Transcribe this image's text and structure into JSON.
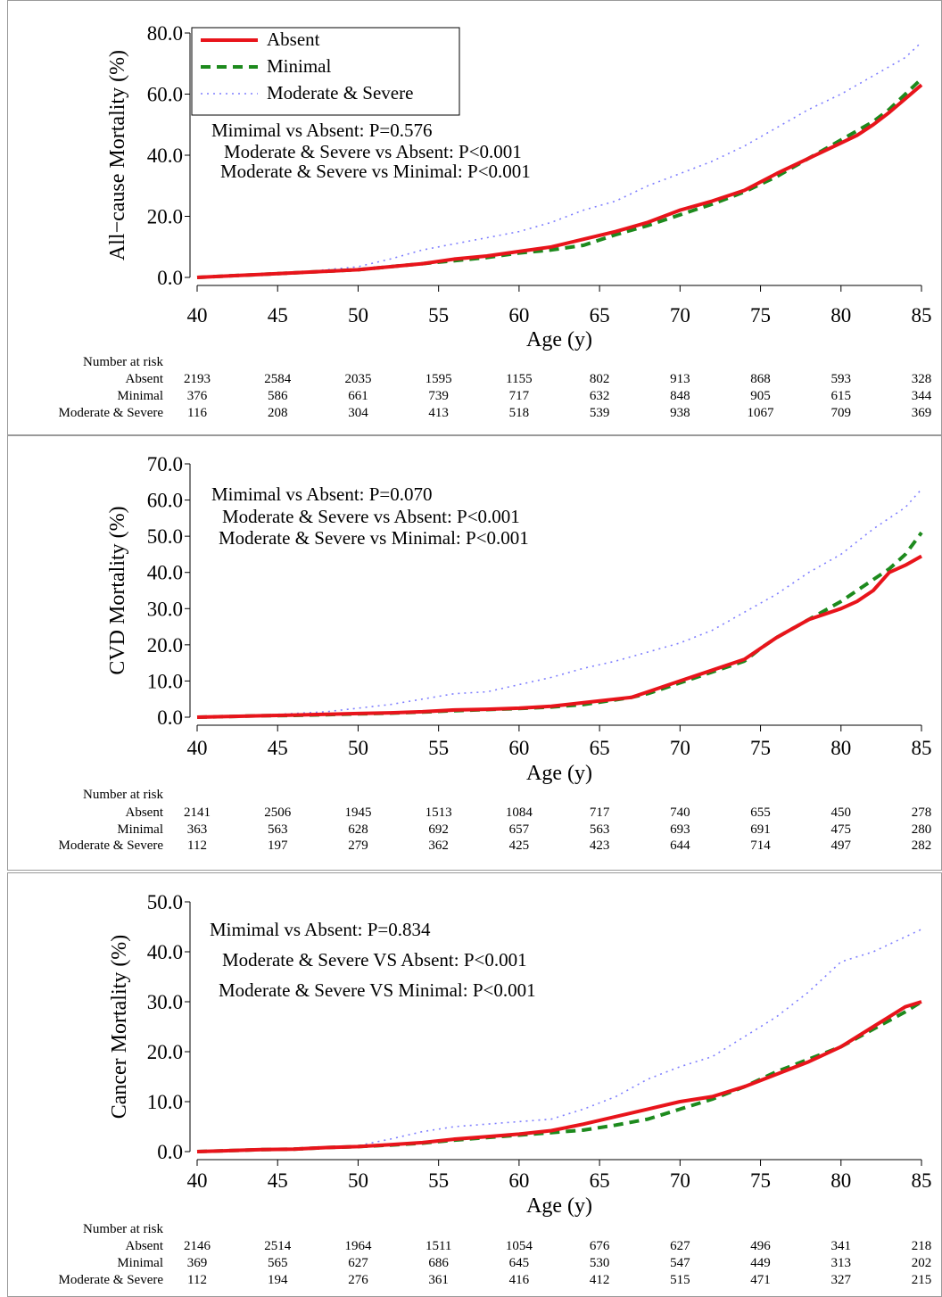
{
  "chart_data": [
    {
      "type": "line",
      "xlabel": "Age (y)",
      "ylabel": "All−cause Mortality (%)",
      "xlim": [
        40,
        85
      ],
      "ylim": [
        0,
        80
      ],
      "x_ticks": [
        "40",
        "45",
        "50",
        "55",
        "60",
        "65",
        "70",
        "75",
        "80",
        "85"
      ],
      "y_ticks": [
        "0.0",
        "20.0",
        "40.0",
        "60.0",
        "80.0"
      ],
      "legend": {
        "placement": "top-left",
        "entries": [
          "Absent",
          "Minimal",
          "Moderate & Severe"
        ]
      },
      "annotations": [
        "Mimimal vs Absent: P=0.576",
        "Moderate & Severe vs Absent:  P<0.001",
        "Moderate & Severe vs Minimal:  P<0.001"
      ],
      "series": [
        {
          "name": "Absent",
          "color": "#e8141b",
          "style": "solid",
          "x": [
            40,
            42,
            44,
            46,
            48,
            50,
            52,
            54,
            56,
            58,
            60,
            62,
            64,
            66,
            68,
            70,
            72,
            74,
            76,
            78,
            80,
            81,
            82,
            83,
            84,
            85
          ],
          "y": [
            0,
            0.5,
            1,
            1.5,
            2,
            2.5,
            3.5,
            4.5,
            6,
            7,
            8.5,
            10,
            12.5,
            15,
            18,
            22,
            25,
            28.5,
            34,
            39,
            44,
            46.5,
            50,
            54,
            58.5,
            63
          ]
        },
        {
          "name": "Minimal",
          "color": "#1d8a1d",
          "style": "dashed",
          "x": [
            40,
            42,
            44,
            46,
            48,
            50,
            52,
            54,
            56,
            58,
            60,
            62,
            64,
            66,
            68,
            70,
            72,
            74,
            76,
            78,
            80,
            81,
            82,
            83,
            84,
            85
          ],
          "y": [
            0,
            0.5,
            1,
            1.5,
            2,
            2.5,
            3.5,
            4.5,
            5.5,
            6.5,
            8,
            9,
            10.5,
            14,
            17,
            20.5,
            24,
            28,
            33,
            39,
            45,
            48,
            51,
            55,
            60,
            65
          ]
        },
        {
          "name": "Moderate & Severe",
          "color": "#7f7fff",
          "style": "dotted",
          "x": [
            40,
            42,
            44,
            46,
            48,
            50,
            52,
            54,
            56,
            58,
            60,
            62,
            64,
            66,
            68,
            70,
            72,
            74,
            76,
            78,
            80,
            82,
            84,
            85
          ],
          "y": [
            0,
            0.5,
            1,
            1.5,
            2.5,
            3.5,
            6,
            9,
            11,
            13,
            15,
            18,
            22,
            25,
            30,
            34,
            38,
            43,
            49,
            55,
            60,
            66,
            72,
            77
          ]
        }
      ],
      "number_at_risk": {
        "title": "Number at risk",
        "rows": [
          {
            "label": "Absent",
            "values": [
              "2193",
              "2584",
              "2035",
              "1595",
              "1155",
              "802",
              "913",
              "868",
              "593",
              "328"
            ]
          },
          {
            "label": "Minimal",
            "values": [
              "376",
              "586",
              "661",
              "739",
              "717",
              "632",
              "848",
              "905",
              "615",
              "344"
            ]
          },
          {
            "label": "Moderate & Severe",
            "values": [
              "116",
              "208",
              "304",
              "413",
              "518",
              "539",
              "938",
              "1067",
              "709",
              "369"
            ]
          }
        ]
      }
    },
    {
      "type": "line",
      "xlabel": "Age (y)",
      "ylabel": "CVD Mortality (%)",
      "xlim": [
        40,
        85
      ],
      "ylim": [
        0,
        70
      ],
      "x_ticks": [
        "40",
        "45",
        "50",
        "55",
        "60",
        "65",
        "70",
        "75",
        "80",
        "85"
      ],
      "y_ticks": [
        "0.0",
        "10.0",
        "20.0",
        "30.0",
        "40.0",
        "50.0",
        "60.0",
        "70.0"
      ],
      "annotations": [
        "Mimimal vs Absent: P=0.070",
        "Moderate & Severe vs Absent:  P<0.001",
        "Moderate & Severe vs Minimal:  P<0.001"
      ],
      "series": [
        {
          "name": "Absent",
          "color": "#e8141b",
          "style": "solid",
          "x": [
            40,
            42,
            44,
            46,
            48,
            50,
            52,
            54,
            56,
            58,
            60,
            62,
            64,
            66,
            67,
            68,
            70,
            72,
            74,
            75,
            76,
            78,
            80,
            81,
            82,
            83,
            84,
            85
          ],
          "y": [
            0,
            0.2,
            0.4,
            0.6,
            0.8,
            1,
            1.2,
            1.5,
            2,
            2.2,
            2.5,
            3,
            4,
            5,
            5.5,
            7,
            10,
            13,
            16,
            19,
            22,
            27,
            30,
            32,
            35,
            40,
            42,
            44.5
          ]
        },
        {
          "name": "Minimal",
          "color": "#1d8a1d",
          "style": "dashed",
          "x": [
            40,
            42,
            44,
            46,
            48,
            50,
            52,
            54,
            56,
            58,
            60,
            62,
            64,
            66,
            67,
            68,
            70,
            72,
            74,
            75,
            76,
            78,
            80,
            81,
            82,
            83,
            84,
            85
          ],
          "y": [
            0,
            0.2,
            0.4,
            0.5,
            0.7,
            0.9,
            1.1,
            1.4,
            1.8,
            2.1,
            2.4,
            2.8,
            3.5,
            4.8,
            5.5,
            6.5,
            9.5,
            12.5,
            15.5,
            19,
            22,
            27,
            32,
            35,
            38,
            41,
            45,
            51
          ]
        },
        {
          "name": "Moderate & Severe",
          "color": "#7f7fff",
          "style": "dotted",
          "x": [
            40,
            42,
            44,
            46,
            48,
            50,
            52,
            54,
            56,
            58,
            60,
            62,
            64,
            66,
            68,
            70,
            72,
            74,
            76,
            78,
            80,
            82,
            84,
            85
          ],
          "y": [
            0,
            0.3,
            0.6,
            1,
            1.5,
            2.5,
            3.5,
            5,
            6.5,
            7,
            9,
            11,
            13.5,
            15.5,
            18,
            20.5,
            24,
            29,
            34,
            40,
            45,
            52,
            58,
            63
          ]
        }
      ],
      "number_at_risk": {
        "title": "Number at risk",
        "rows": [
          {
            "label": "Absent",
            "values": [
              "2141",
              "2506",
              "1945",
              "1513",
              "1084",
              "717",
              "740",
              "655",
              "450",
              "278"
            ]
          },
          {
            "label": "Minimal",
            "values": [
              "363",
              "563",
              "628",
              "692",
              "657",
              "563",
              "693",
              "691",
              "475",
              "280"
            ]
          },
          {
            "label": "Moderate & Severe",
            "values": [
              "112",
              "197",
              "279",
              "362",
              "425",
              "423",
              "644",
              "714",
              "497",
              "282"
            ]
          }
        ]
      }
    },
    {
      "type": "line",
      "xlabel": "Age (y)",
      "ylabel": "Cancer Mortality (%)",
      "xlim": [
        40,
        85
      ],
      "ylim": [
        0,
        50
      ],
      "x_ticks": [
        "40",
        "45",
        "50",
        "55",
        "60",
        "65",
        "70",
        "75",
        "80",
        "85"
      ],
      "y_ticks": [
        "0.0",
        "10.0",
        "20.0",
        "30.0",
        "40.0",
        "50.0"
      ],
      "annotations": [
        "Mimimal vs Absent: P=0.834",
        "Moderate & Severe VS Absent:  P<0.001",
        "Moderate & Severe VS Minimal:  P<0.001"
      ],
      "series": [
        {
          "name": "Absent",
          "color": "#e8141b",
          "style": "solid",
          "x": [
            40,
            42,
            44,
            46,
            48,
            50,
            52,
            54,
            56,
            58,
            60,
            62,
            64,
            66,
            68,
            70,
            72,
            74,
            76,
            78,
            80,
            82,
            84,
            85
          ],
          "y": [
            0,
            0.2,
            0.4,
            0.5,
            0.8,
            1,
            1.4,
            1.8,
            2.5,
            3,
            3.5,
            4.2,
            5.5,
            7,
            8.5,
            10,
            11,
            13,
            15.5,
            18,
            21,
            25,
            29,
            30
          ]
        },
        {
          "name": "Minimal",
          "color": "#1d8a1d",
          "style": "dashed",
          "x": [
            40,
            42,
            44,
            46,
            48,
            50,
            52,
            54,
            56,
            58,
            60,
            62,
            64,
            66,
            68,
            70,
            72,
            74,
            76,
            78,
            80,
            82,
            84,
            85
          ],
          "y": [
            0,
            0.2,
            0.4,
            0.5,
            0.8,
            1,
            1.3,
            1.7,
            2.3,
            2.8,
            3.3,
            3.8,
            4.3,
            5.3,
            6.5,
            8.5,
            10.5,
            13,
            16,
            18.5,
            21,
            24.5,
            28,
            30
          ]
        },
        {
          "name": "Moderate & Severe",
          "color": "#7f7fff",
          "style": "dotted",
          "x": [
            40,
            42,
            44,
            46,
            48,
            50,
            52,
            54,
            56,
            58,
            60,
            62,
            64,
            66,
            68,
            70,
            72,
            74,
            76,
            78,
            80,
            82,
            84,
            85
          ],
          "y": [
            0,
            0.2,
            0.4,
            0.6,
            0.8,
            1.2,
            2.5,
            4,
            5,
            5.5,
            6,
            6.5,
            8.5,
            11,
            14.5,
            17,
            19,
            23,
            27,
            32,
            38,
            40,
            43,
            44.5
          ]
        }
      ],
      "number_at_risk": {
        "title": "Number at risk",
        "rows": [
          {
            "label": "Absent",
            "values": [
              "2146",
              "2514",
              "1964",
              "1511",
              "1054",
              "676",
              "627",
              "496",
              "341",
              "218"
            ]
          },
          {
            "label": "Minimal",
            "values": [
              "369",
              "565",
              "627",
              "686",
              "645",
              "530",
              "547",
              "449",
              "313",
              "202"
            ]
          },
          {
            "label": "Moderate & Severe",
            "values": [
              "112",
              "194",
              "276",
              "361",
              "416",
              "412",
              "515",
              "471",
              "327",
              "215"
            ]
          }
        ]
      }
    }
  ]
}
